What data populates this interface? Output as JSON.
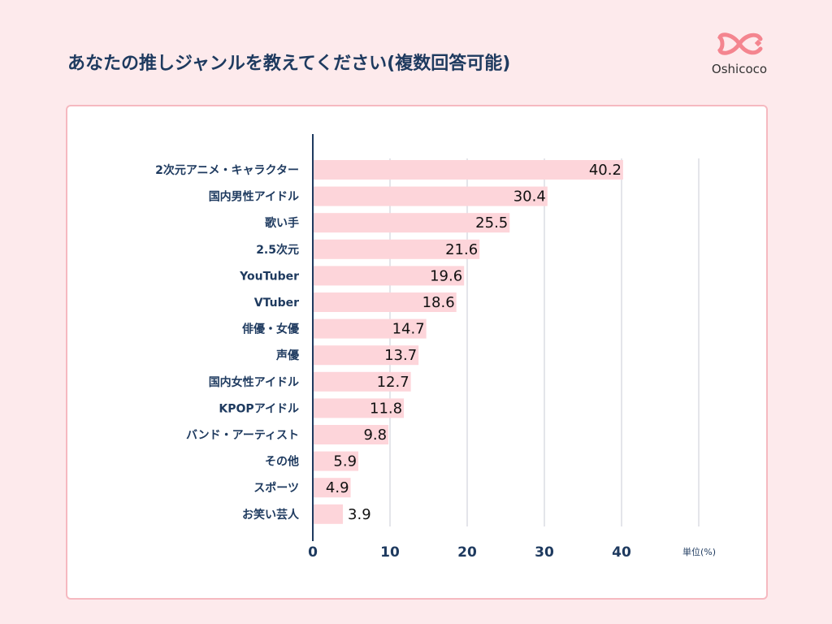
{
  "title": "あなたの推しジャンルを教えてください(複数回答可能)",
  "logo": {
    "text": "Oshicoco"
  },
  "chart_data": {
    "type": "bar",
    "orientation": "horizontal",
    "categories": [
      "2次元アニメ・キャラクター",
      "国内男性アイドル",
      "歌い手",
      "2.5次元",
      "YouTuber",
      "VTuber",
      "俳優・女優",
      "声優",
      "国内女性アイドル",
      "KPOPアイドル",
      "バンド・アーティスト",
      "その他",
      "スポーツ",
      "お笑い芸人"
    ],
    "values": [
      40.2,
      30.4,
      25.5,
      21.6,
      19.6,
      18.6,
      14.7,
      13.7,
      12.7,
      11.8,
      9.8,
      5.9,
      4.9,
      3.9
    ],
    "value_labels": [
      "40.2",
      "30.4",
      "25.5",
      "21.6",
      "19.6",
      "18.6",
      "14.7",
      "13.7",
      "12.7",
      "11.8",
      "9.8",
      "5.9",
      "4.9",
      "3.9"
    ],
    "xticks": [
      "0",
      "10",
      "20",
      "30",
      "40"
    ],
    "xlim": [
      0,
      50
    ],
    "unit_label": "単位(%)",
    "grid": true,
    "colors": {
      "bar": "#fdd5da",
      "axis": "#1e3a5f",
      "grid": "#c8cbd6",
      "text": "#1e3a5f"
    }
  }
}
